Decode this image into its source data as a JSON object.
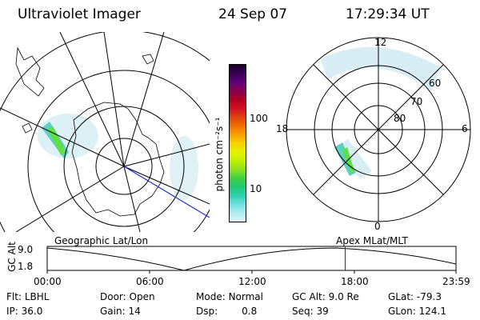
{
  "header": {
    "instrument": "Ultraviolet Imager",
    "date": "24 Sep 07",
    "time": "17:29:34 UT"
  },
  "colorbar": {
    "unit_label": "photon cm⁻²s⁻¹",
    "ticks": [
      "100",
      "10"
    ],
    "colors": [
      "#1a0030",
      "#3a0050",
      "#60007a",
      "#8a0050",
      "#b00020",
      "#d01020",
      "#e04010",
      "#f07000",
      "#f8a000",
      "#f8d000",
      "#e8f000",
      "#c0f000",
      "#90e020",
      "#40d040",
      "#20c870",
      "#30d0b0",
      "#70e0e0",
      "#b0ecf0",
      "#e0f4f8"
    ]
  },
  "left_panel": {
    "caption": "Geographic Lat/Lon"
  },
  "right_panel": {
    "caption": "Apex MLat/MLT",
    "mlt_labels": {
      "top": "12",
      "left": "18",
      "right": "6",
      "bottom": "0"
    },
    "lat_labels": [
      "60",
      "70",
      "80"
    ]
  },
  "timeline": {
    "ylabel": "GC Alt",
    "yticks": [
      "9.0",
      "1.8"
    ],
    "xticks": [
      "00:00",
      "06:00",
      "12:00",
      "18:00",
      "23:59"
    ],
    "marker_time": "17:29",
    "marker_color": "#c00000"
  },
  "status": {
    "flt_label": "Flt:",
    "flt_value": "LBHL",
    "ip_label": "IP:",
    "ip_value": "36.0",
    "door_label": "Door:",
    "door_value": "Open",
    "gain_label": "Gain:",
    "gain_value": "14",
    "mode_label": "Mode:",
    "mode_value": "Normal",
    "dsp_label": "Dsp:",
    "dsp_value": "0.8",
    "gcalt_label": "GC Alt:",
    "gcalt_value": "9.0 Re",
    "seq_label": "Seq:",
    "seq_value": "39",
    "glat_label": "GLat:",
    "glat_value": "-79.3",
    "glon_label": "GLon:",
    "glon_value": "124.1"
  }
}
